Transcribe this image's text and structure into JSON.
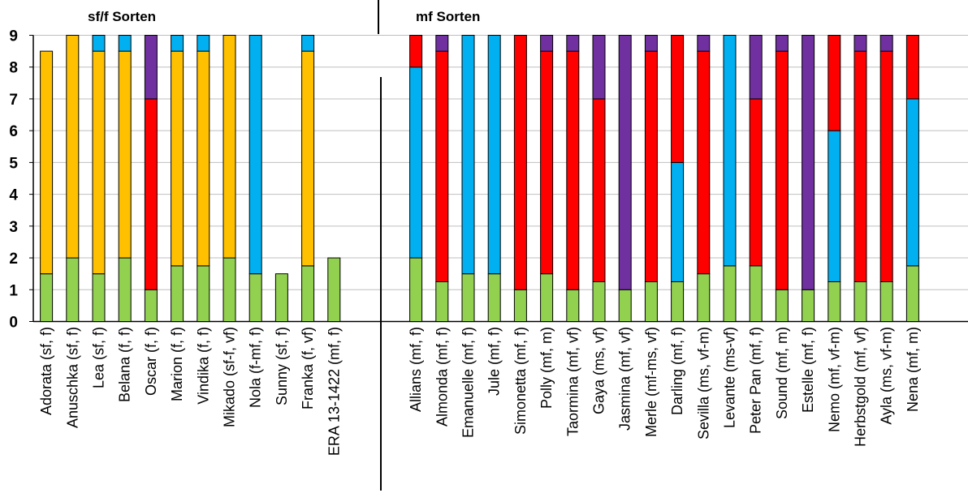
{
  "chart_data": {
    "type": "bar",
    "stacked": true,
    "ylim": [
      0,
      9
    ],
    "y_ticks": [
      "0",
      "1",
      "2",
      "3",
      "4",
      "5",
      "6",
      "7",
      "8",
      "9"
    ],
    "group_titles": [
      "sf/f Sorten",
      "mf Sorten"
    ],
    "colors": {
      "green": "#92d050",
      "yellow": "#ffc000",
      "blue": "#00b0f0",
      "red": "#ff0000",
      "purple": "#7030a0"
    },
    "groups": [
      {
        "title_index": 0,
        "categories": [
          {
            "label": "Adorata (sf, f)",
            "segments": [
              {
                "c": "green",
                "v": 1.5
              },
              {
                "c": "yellow",
                "v": 7.0
              }
            ]
          },
          {
            "label": "Anuschka (sf, f)",
            "segments": [
              {
                "c": "green",
                "v": 2.0
              },
              {
                "c": "yellow",
                "v": 7.0
              }
            ]
          },
          {
            "label": "Lea (sf, f)",
            "segments": [
              {
                "c": "green",
                "v": 1.5
              },
              {
                "c": "yellow",
                "v": 7.0
              },
              {
                "c": "blue",
                "v": 0.5
              }
            ]
          },
          {
            "label": "Belana (f, f)",
            "segments": [
              {
                "c": "green",
                "v": 2.0
              },
              {
                "c": "yellow",
                "v": 6.5
              },
              {
                "c": "blue",
                "v": 0.5
              }
            ]
          },
          {
            "label": "Oscar (f, f)",
            "segments": [
              {
                "c": "green",
                "v": 1.0
              },
              {
                "c": "red",
                "v": 6.0
              },
              {
                "c": "purple",
                "v": 2.0
              }
            ]
          },
          {
            "label": "Marion (f, f)",
            "segments": [
              {
                "c": "green",
                "v": 1.75
              },
              {
                "c": "yellow",
                "v": 6.75
              },
              {
                "c": "blue",
                "v": 0.5
              }
            ]
          },
          {
            "label": "Vindika (f, f)",
            "segments": [
              {
                "c": "green",
                "v": 1.75
              },
              {
                "c": "yellow",
                "v": 6.75
              },
              {
                "c": "blue",
                "v": 0.5
              }
            ]
          },
          {
            "label": "Mikado (sf-f, vf)",
            "segments": [
              {
                "c": "green",
                "v": 2.0
              },
              {
                "c": "yellow",
                "v": 7.0
              }
            ]
          },
          {
            "label": "Nola (f-mf, f)",
            "segments": [
              {
                "c": "green",
                "v": 1.5
              },
              {
                "c": "blue",
                "v": 7.5
              }
            ]
          },
          {
            "label": "Sunny (sf, f)",
            "segments": [
              {
                "c": "green",
                "v": 1.5
              }
            ]
          },
          {
            "label": "Franka (f, vf)",
            "segments": [
              {
                "c": "green",
                "v": 1.75
              },
              {
                "c": "yellow",
                "v": 6.75
              },
              {
                "c": "blue",
                "v": 0.5
              }
            ]
          },
          {
            "label": "ERA 13-1422 (mf, f)",
            "segments": [
              {
                "c": "green",
                "v": 2.0
              }
            ]
          }
        ]
      },
      {
        "title_index": 1,
        "categories": [
          {
            "label": "Allians (mf, f)",
            "segments": [
              {
                "c": "green",
                "v": 2.0
              },
              {
                "c": "blue",
                "v": 6.0
              },
              {
                "c": "red",
                "v": 1.0
              }
            ]
          },
          {
            "label": "Almonda (mf, f)",
            "segments": [
              {
                "c": "green",
                "v": 1.25
              },
              {
                "c": "red",
                "v": 7.25
              },
              {
                "c": "purple",
                "v": 0.5
              }
            ]
          },
          {
            "label": "Emanuelle (mf, f)",
            "segments": [
              {
                "c": "green",
                "v": 1.5
              },
              {
                "c": "blue",
                "v": 7.5
              }
            ]
          },
          {
            "label": "Jule (mf, f)",
            "segments": [
              {
                "c": "green",
                "v": 1.5
              },
              {
                "c": "blue",
                "v": 7.5
              }
            ]
          },
          {
            "label": "Simonetta (mf, f)",
            "segments": [
              {
                "c": "green",
                "v": 1.0
              },
              {
                "c": "red",
                "v": 8.0
              }
            ]
          },
          {
            "label": "Polly (mf, m)",
            "segments": [
              {
                "c": "green",
                "v": 1.5
              },
              {
                "c": "red",
                "v": 7.0
              },
              {
                "c": "purple",
                "v": 0.5
              }
            ]
          },
          {
            "label": "Taormina (mf, vf)",
            "segments": [
              {
                "c": "green",
                "v": 1.0
              },
              {
                "c": "red",
                "v": 7.5
              },
              {
                "c": "purple",
                "v": 0.5
              }
            ]
          },
          {
            "label": "Gaya (ms, vf)",
            "segments": [
              {
                "c": "green",
                "v": 1.25
              },
              {
                "c": "red",
                "v": 5.75
              },
              {
                "c": "purple",
                "v": 2.0
              }
            ]
          },
          {
            "label": "Jasmina (mf, vf)",
            "segments": [
              {
                "c": "green",
                "v": 1.0
              },
              {
                "c": "purple",
                "v": 8.0
              }
            ]
          },
          {
            "label": "Merle (mf-ms, vf)",
            "segments": [
              {
                "c": "green",
                "v": 1.25
              },
              {
                "c": "red",
                "v": 7.25
              },
              {
                "c": "purple",
                "v": 0.5
              }
            ]
          },
          {
            "label": "Darling (mf, f)",
            "segments": [
              {
                "c": "green",
                "v": 1.25
              },
              {
                "c": "blue",
                "v": 3.75
              },
              {
                "c": "red",
                "v": 4.0
              }
            ]
          },
          {
            "label": "Sevilla (ms, vf-m)",
            "segments": [
              {
                "c": "green",
                "v": 1.5
              },
              {
                "c": "red",
                "v": 7.0
              },
              {
                "c": "purple",
                "v": 0.5
              }
            ]
          },
          {
            "label": "Levante (ms-vf)",
            "segments": [
              {
                "c": "green",
                "v": 1.75
              },
              {
                "c": "blue",
                "v": 7.25
              }
            ]
          },
          {
            "label": "Peter Pan (mf, f)",
            "segments": [
              {
                "c": "green",
                "v": 1.75
              },
              {
                "c": "red",
                "v": 5.25
              },
              {
                "c": "purple",
                "v": 2.0
              }
            ]
          },
          {
            "label": "Sound (mf, m)",
            "segments": [
              {
                "c": "green",
                "v": 1.0
              },
              {
                "c": "red",
                "v": 7.5
              },
              {
                "c": "purple",
                "v": 0.5
              }
            ]
          },
          {
            "label": "Estelle (mf, f)",
            "segments": [
              {
                "c": "green",
                "v": 1.0
              },
              {
                "c": "purple",
                "v": 8.0
              }
            ]
          },
          {
            "label": "Nemo (mf, vf-m)",
            "segments": [
              {
                "c": "green",
                "v": 1.25
              },
              {
                "c": "blue",
                "v": 4.75
              },
              {
                "c": "red",
                "v": 3.0
              }
            ]
          },
          {
            "label": "Herbstgold (mf, vf)",
            "segments": [
              {
                "c": "green",
                "v": 1.25
              },
              {
                "c": "red",
                "v": 7.25
              },
              {
                "c": "purple",
                "v": 0.5
              }
            ]
          },
          {
            "label": "Ayla (ms, vf-m)",
            "segments": [
              {
                "c": "green",
                "v": 1.25
              },
              {
                "c": "red",
                "v": 7.25
              },
              {
                "c": "purple",
                "v": 0.5
              }
            ]
          },
          {
            "label": "Nena (mf, m)",
            "segments": [
              {
                "c": "green",
                "v": 1.75
              },
              {
                "c": "blue",
                "v": 5.25
              },
              {
                "c": "red",
                "v": 2.0
              }
            ]
          }
        ]
      }
    ]
  }
}
